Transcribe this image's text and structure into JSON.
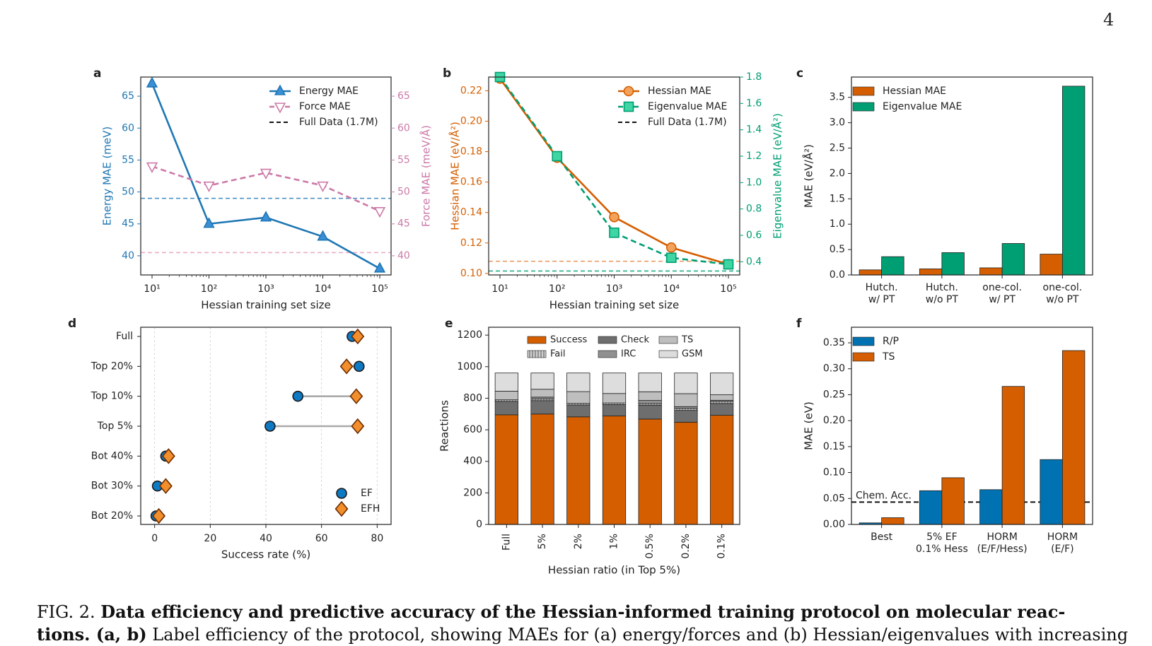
{
  "page": {
    "number": "4"
  },
  "caption": {
    "prefix": "FIG. 2.",
    "title": "Data efficiency and predictive accuracy of the Hessian-informed training protocol on molecular reac-",
    "line2_bold": "tions. (a, b)",
    "line2_text": "Label efficiency of the protocol, showing MAEs for (a) energy/forces and (b) Hessian/eigenvalues with increasing"
  },
  "chart_data": [
    {
      "panel": "a",
      "type": "line",
      "x": [
        10,
        100,
        1000,
        10000,
        100000
      ],
      "x_tick_labels": [
        "10¹",
        "10²",
        "10³",
        "10⁴",
        "10⁵"
      ],
      "xlabel": "Hessian training set size",
      "x_scale": "log",
      "ylabel_left": "Energy MAE (meV)",
      "ylabel_right": "Force MAE (meV/Å)",
      "ylim_left": [
        37,
        68
      ],
      "ylim_right": [
        37,
        68
      ],
      "yticks_left": [
        40,
        45,
        50,
        55,
        60,
        65
      ],
      "yticks_right": [
        40,
        45,
        50,
        55,
        60,
        65
      ],
      "series": [
        {
          "name": "Energy MAE",
          "axis": "left",
          "values": [
            67,
            45,
            46,
            43,
            38
          ],
          "color": "#1f77b4",
          "marker": "triangle-up"
        },
        {
          "name": "Force MAE",
          "axis": "right",
          "values": [
            54,
            51,
            53,
            51,
            47
          ],
          "color": "#cc79a7",
          "marker": "triangle-down",
          "line": "dashed"
        }
      ],
      "reference_lines": [
        {
          "name": "Full Data (1.7M)",
          "axis": "left",
          "value": 49,
          "color": "#1f77b4"
        },
        {
          "name": "Full Data (1.7M)",
          "axis": "right",
          "value": 40.5,
          "color": "#e89ab8"
        }
      ],
      "legend": [
        "Energy MAE",
        "Force MAE",
        "Full Data (1.7M)"
      ],
      "legend_position": "top-right"
    },
    {
      "panel": "b",
      "type": "line",
      "x": [
        10,
        100,
        1000,
        10000,
        100000
      ],
      "x_tick_labels": [
        "10¹",
        "10²",
        "10³",
        "10⁴",
        "10⁵"
      ],
      "xlabel": "Hessian training set size",
      "x_scale": "log",
      "ylabel_left": "Hessian MAE (eV/Å²)",
      "ylabel_right": "Eigenvalue MAE (eV/Å²)",
      "ylim_left": [
        0.099,
        0.229
      ],
      "ylim_right": [
        0.3,
        1.8
      ],
      "yticks_left": [
        "0.10",
        "0.12",
        "0.14",
        "0.16",
        "0.18",
        "0.20",
        "0.22"
      ],
      "yticks_right": [
        "0.4",
        "0.6",
        "0.8",
        "1.0",
        "1.2",
        "1.4",
        "1.6",
        "1.8"
      ],
      "series": [
        {
          "name": "Hessian MAE",
          "axis": "left",
          "values": [
            0.228,
            0.176,
            0.137,
            0.117,
            0.106
          ],
          "color": "#d55e00",
          "marker": "circle"
        },
        {
          "name": "Eigenvalue MAE",
          "axis": "right",
          "values": [
            1.8,
            1.2,
            0.62,
            0.43,
            0.38
          ],
          "color": "#009e73",
          "marker": "square",
          "line": "dashed"
        }
      ],
      "reference_lines": [
        {
          "name": "Full Data (1.7M)",
          "axis": "left",
          "value": 0.108,
          "color": "#e8823c"
        },
        {
          "name": "Full Data (1.7M)",
          "axis": "right",
          "value": 0.33,
          "color": "#009e73"
        }
      ],
      "legend": [
        "Hessian MAE",
        "Eigenvalue MAE",
        "Full Data (1.7M)"
      ],
      "legend_position": "top-right"
    },
    {
      "panel": "c",
      "type": "bar",
      "categories": [
        [
          "Hutch.",
          "w/ PT"
        ],
        [
          "Hutch.",
          "w/o PT"
        ],
        [
          "one-col.",
          "w/ PT"
        ],
        [
          "one-col.",
          "w/o PT"
        ]
      ],
      "ylabel": "MAE (eV/Å²)",
      "ylim": [
        0,
        3.9
      ],
      "yticks": [
        "0.0",
        "0.5",
        "1.0",
        "1.5",
        "2.0",
        "2.5",
        "3.0",
        "3.5"
      ],
      "series": [
        {
          "name": "Hessian MAE",
          "values": [
            0.1,
            0.12,
            0.14,
            0.41
          ],
          "color": "#d55e00"
        },
        {
          "name": "Eigenvalue MAE",
          "values": [
            0.36,
            0.44,
            0.62,
            3.72
          ],
          "color": "#009e73"
        }
      ],
      "legend_position": "top-left"
    },
    {
      "panel": "d",
      "type": "scatter",
      "categories": [
        "Full",
        "Top 20%",
        "Top 10%",
        "Top 5%",
        "Bot 40%",
        "Bot 30%",
        "Bot 20%"
      ],
      "xlabel": "Success rate (%)",
      "xlim": [
        -5,
        85
      ],
      "xticks": [
        0,
        20,
        40,
        60,
        80
      ],
      "grid": "vertical",
      "series": [
        {
          "name": "EF",
          "values": [
            71,
            73.5,
            51.5,
            41.5,
            4,
            1,
            0.5
          ],
          "color": "#0f7ac4",
          "marker": "circle"
        },
        {
          "name": "EFH",
          "values": [
            73,
            69,
            72.5,
            73,
            5,
            4,
            1.5
          ],
          "color": "#f28e2b",
          "marker": "diamond"
        }
      ],
      "legend_position": "bottom-right"
    },
    {
      "panel": "e",
      "type": "bar",
      "stacked": true,
      "categories": [
        "Full",
        "5%",
        "2%",
        "1%",
        "0.5%",
        "0.2%",
        "0.1%"
      ],
      "xlabel": "Hessian ratio (in Top 5%)",
      "ylabel": "Reactions",
      "ylim": [
        0,
        1250
      ],
      "yticks": [
        0,
        200,
        400,
        600,
        800,
        1000,
        1200
      ],
      "series": [
        {
          "name": "Success",
          "values": [
            695,
            700,
            682,
            688,
            668,
            648,
            692
          ],
          "color": "#d55e00"
        },
        {
          "name": "Check",
          "values": [
            85,
            85,
            75,
            72,
            88,
            75,
            75
          ],
          "color": "#6e6e6e"
        },
        {
          "name": "Fail",
          "values": [
            10,
            10,
            10,
            10,
            10,
            12,
            12
          ],
          "color": "#a8a8a8",
          "pattern": "vertical-lines"
        },
        {
          "name": "IRC",
          "values": [
            0,
            12,
            0,
            0,
            20,
            12,
            8
          ],
          "color": "#909090"
        },
        {
          "name": "TS",
          "values": [
            55,
            50,
            75,
            60,
            55,
            82,
            35
          ],
          "color": "#bebebe"
        },
        {
          "name": "GSM",
          "values": [
            115,
            103,
            118,
            130,
            119,
            131,
            138
          ],
          "color": "#dddddd"
        }
      ],
      "legend_position": "top"
    },
    {
      "panel": "f",
      "type": "bar",
      "categories": [
        [
          "Best"
        ],
        [
          "5% EF",
          "0.1% Hess"
        ],
        [
          "HORM",
          "(E/F/Hess)"
        ],
        [
          "HORM",
          "(E/F)"
        ]
      ],
      "ylabel": "MAE (eV)",
      "ylim": [
        0,
        0.38
      ],
      "yticks": [
        "0.00",
        "0.05",
        "0.10",
        "0.15",
        "0.20",
        "0.25",
        "0.30",
        "0.35"
      ],
      "series": [
        {
          "name": "R/P",
          "values": [
            0.003,
            0.065,
            0.067,
            0.125
          ],
          "color": "#0072b2"
        },
        {
          "name": "TS",
          "values": [
            0.013,
            0.09,
            0.266,
            0.335
          ],
          "color": "#d55e00"
        }
      ],
      "reference_lines": [
        {
          "name": "Chem. Acc.",
          "value": 0.043,
          "color": "#111111"
        }
      ],
      "legend_position": "top-left"
    }
  ]
}
